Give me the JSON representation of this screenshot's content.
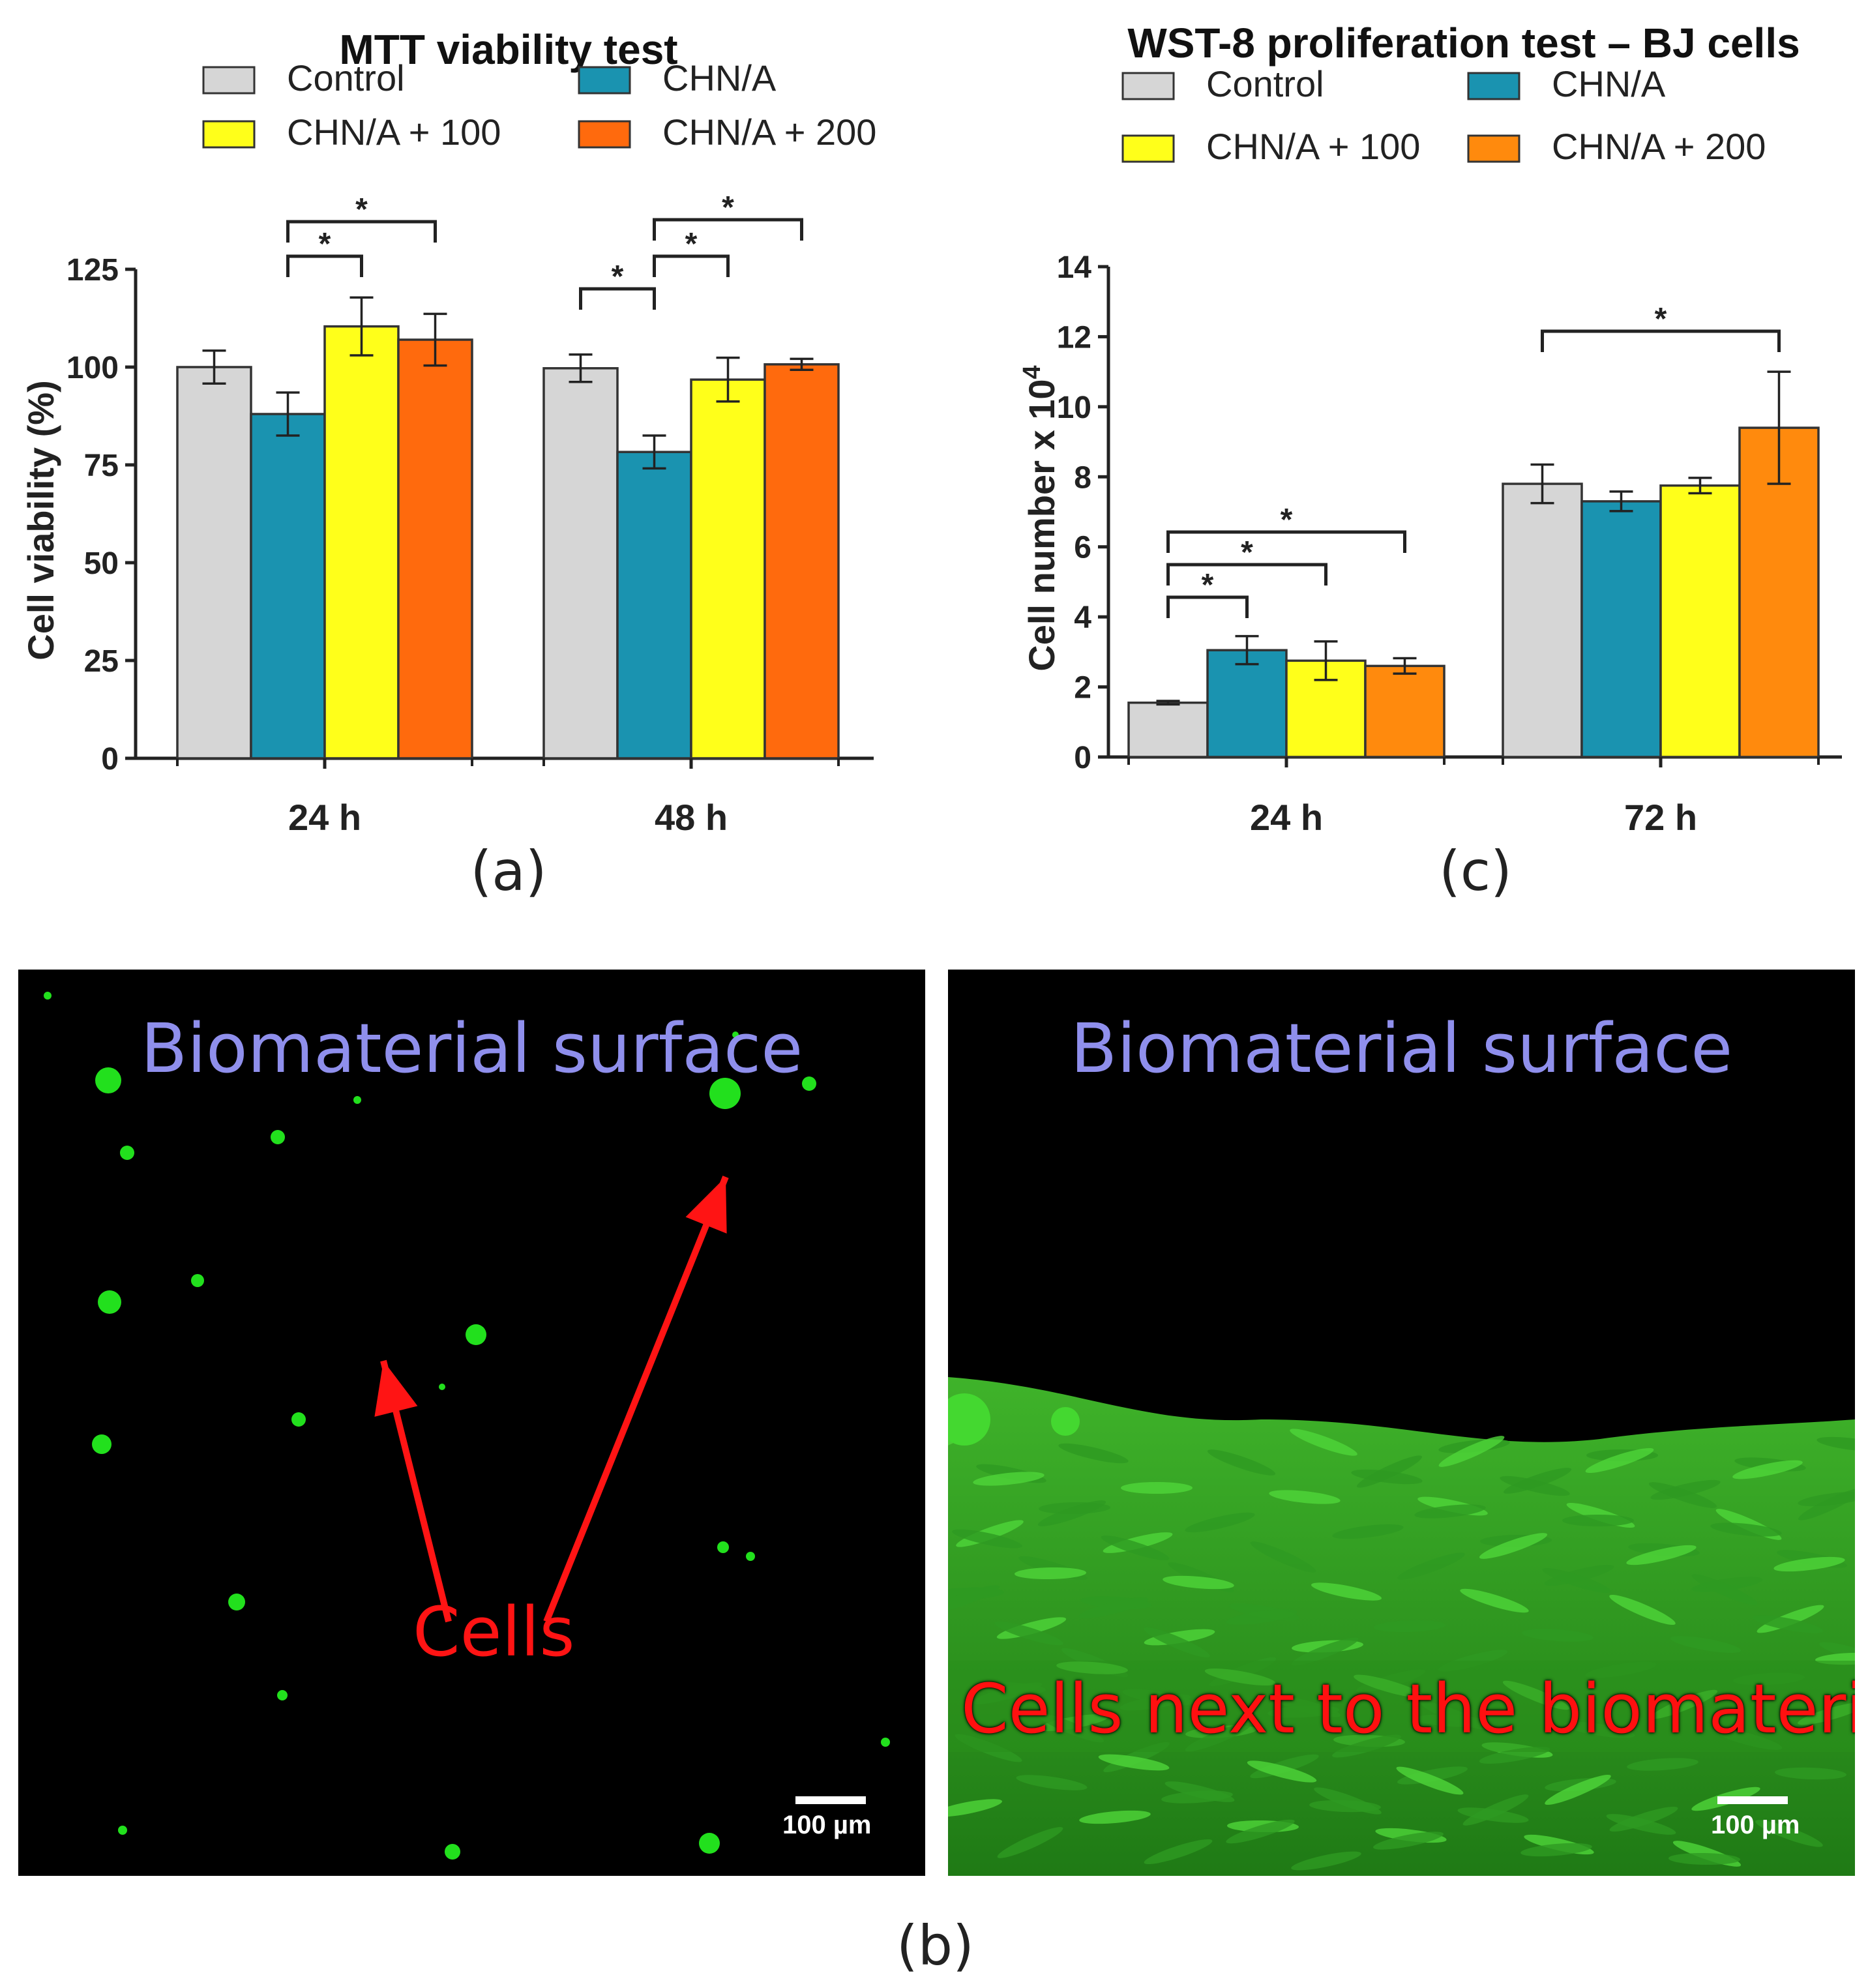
{
  "chart_data": [
    {
      "id": "a",
      "type": "bar",
      "title": "MTT viability test",
      "xlabel": "",
      "ylabel": "Cell viability (%)",
      "ylim": [
        0,
        125
      ],
      "yticks": [
        0,
        25,
        50,
        75,
        100,
        125
      ],
      "categories": [
        "24 h",
        "48 h"
      ],
      "series": [
        {
          "name": "Control",
          "values": [
            100,
            99.7
          ],
          "errors": [
            4.2,
            3.5
          ],
          "color": "#d6d6d6"
        },
        {
          "name": "CHN/A",
          "values": [
            88,
            78.3
          ],
          "errors": [
            5.5,
            4.2
          ],
          "color": "#1a93b0"
        },
        {
          "name": "CHN/A + 100",
          "values": [
            110.4,
            96.8
          ],
          "errors": [
            7.4,
            5.6
          ],
          "color": "#ffff1a"
        },
        {
          "name": "CHN/A + 200",
          "values": [
            107,
            100.7
          ],
          "errors": [
            6.6,
            1.4
          ],
          "color": "#ff6a0d"
        }
      ],
      "significance": [
        {
          "category": "24 h",
          "from": "CHN/A",
          "to": "CHN/A + 100",
          "label": "*"
        },
        {
          "category": "24 h",
          "from": "CHN/A",
          "to": "CHN/A + 200",
          "label": "*"
        },
        {
          "category": "48 h",
          "from": "Control",
          "to": "CHN/A",
          "label": "*"
        },
        {
          "category": "48 h",
          "from": "CHN/A",
          "to": "CHN/A + 100",
          "label": "*"
        },
        {
          "category": "48 h",
          "from": "CHN/A",
          "to": "CHN/A + 200",
          "label": "*"
        }
      ],
      "legend": "top",
      "grid": false,
      "panel_label": "(a)"
    },
    {
      "id": "c",
      "type": "bar",
      "title": "WST-8 proliferation test – BJ cells",
      "xlabel": "",
      "ylabel": "Cell number x 10",
      "ylabel_superscript": "4",
      "ylim": [
        0,
        14
      ],
      "yticks": [
        0,
        2,
        4,
        6,
        8,
        10,
        12,
        14
      ],
      "categories": [
        "24 h",
        "72 h"
      ],
      "series": [
        {
          "name": "Control",
          "values": [
            1.55,
            7.8
          ],
          "errors": [
            0.05,
            0.55
          ],
          "color": "#d6d6d6"
        },
        {
          "name": "CHN/A",
          "values": [
            3.05,
            7.3
          ],
          "errors": [
            0.4,
            0.28
          ],
          "color": "#1a93b0"
        },
        {
          "name": "CHN/A + 100",
          "values": [
            2.75,
            7.75
          ],
          "errors": [
            0.55,
            0.22
          ],
          "color": "#ffff1a"
        },
        {
          "name": "CHN/A + 200",
          "values": [
            2.6,
            9.4
          ],
          "errors": [
            0.22,
            1.6
          ],
          "color": "#ff8a0d"
        }
      ],
      "significance": [
        {
          "category": "24 h",
          "from": "Control",
          "to": "CHN/A",
          "label": "*"
        },
        {
          "category": "24 h",
          "from": "Control",
          "to": "CHN/A + 100",
          "label": "*"
        },
        {
          "category": "24 h",
          "from": "Control",
          "to": "CHN/A + 200",
          "label": "*"
        },
        {
          "category": "72 h",
          "from": "Control",
          "to": "CHN/A + 200",
          "label": "*"
        }
      ],
      "legend": "top",
      "grid": false,
      "panel_label": "(c)"
    }
  ],
  "micrographs": {
    "left": {
      "title": "Biomaterial surface",
      "arrow_label": "Cells",
      "scale_label": "100 µm"
    },
    "right": {
      "title": "Biomaterial surface",
      "region_label": "Cells next to the biomaterial",
      "scale_label": "100 µm"
    },
    "panel_label": "(b)"
  }
}
